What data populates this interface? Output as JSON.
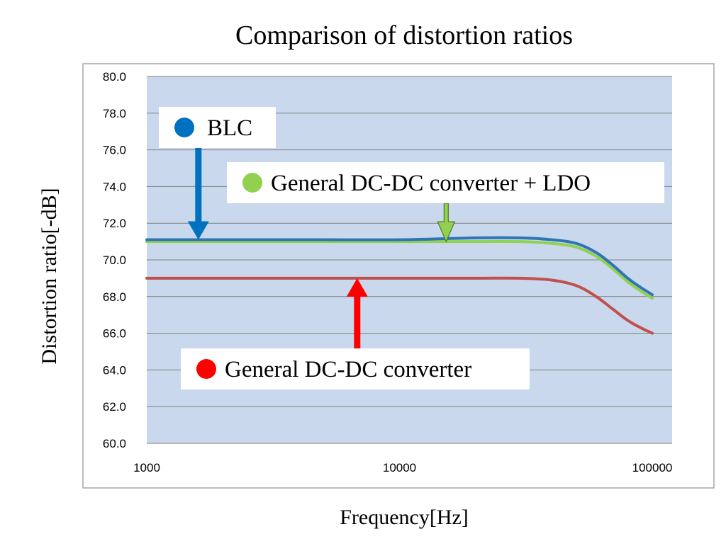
{
  "chart_data": {
    "type": "line",
    "title": "Comparison of distortion ratios",
    "xlabel": "Frequency[Hz]",
    "ylabel": "Distortion ratio[-dB]",
    "x_scale": "log",
    "xlim": [
      1000,
      100000
    ],
    "ylim": [
      60.0,
      80.0
    ],
    "x_ticks": [
      "1000",
      "10000",
      "100000"
    ],
    "y_ticks": [
      "60.0",
      "62.0",
      "64.0",
      "66.0",
      "68.0",
      "70.0",
      "72.0",
      "74.0",
      "76.0",
      "78.0",
      "80.0"
    ],
    "grid": true,
    "series": [
      {
        "name": "BLC",
        "color": "#2e75b6",
        "x": [
          1000,
          2000,
          5000,
          10000,
          20000,
          30000,
          40000,
          50000,
          60000,
          70000,
          80000,
          90000,
          100000
        ],
        "y": [
          71.1,
          71.1,
          71.1,
          71.1,
          71.2,
          71.2,
          71.1,
          70.9,
          70.4,
          69.7,
          69.0,
          68.5,
          68.1
        ]
      },
      {
        "name": "General DC-DC converter + LDO",
        "color": "#92d050",
        "x": [
          1000,
          2000,
          5000,
          10000,
          20000,
          30000,
          40000,
          50000,
          60000,
          70000,
          80000,
          90000,
          100000
        ],
        "y": [
          71.0,
          71.0,
          71.0,
          71.0,
          71.0,
          71.0,
          70.9,
          70.7,
          70.2,
          69.5,
          68.8,
          68.3,
          67.9
        ]
      },
      {
        "name": "General DC-DC converter",
        "color": "#c0504d",
        "x": [
          1000,
          2000,
          5000,
          10000,
          20000,
          30000,
          40000,
          50000,
          60000,
          70000,
          80000,
          90000,
          100000
        ],
        "y": [
          69.0,
          69.0,
          69.0,
          69.0,
          69.0,
          69.0,
          68.9,
          68.6,
          68.0,
          67.3,
          66.7,
          66.3,
          66.0
        ]
      }
    ],
    "annotations": [
      {
        "label": "BLC",
        "dot_color": "#0070c0",
        "arrow_color": "#0070c0",
        "arrow_dir": "down",
        "target_x": 1600,
        "target_y": 71.1
      },
      {
        "label": "General DC-DC converter + LDO",
        "dot_color": "#92d050",
        "arrow_color": "#92d050",
        "arrow_dir": "down",
        "target_x": 15300,
        "target_y": 71.0
      },
      {
        "label": "General DC-DC converter",
        "dot_color": "#ff0000",
        "arrow_color": "#ff0000",
        "arrow_dir": "up",
        "target_x": 6800,
        "target_y": 69.0
      }
    ],
    "plot_bg": "#c9d8ec",
    "grid_color": "#7f7f7f"
  }
}
